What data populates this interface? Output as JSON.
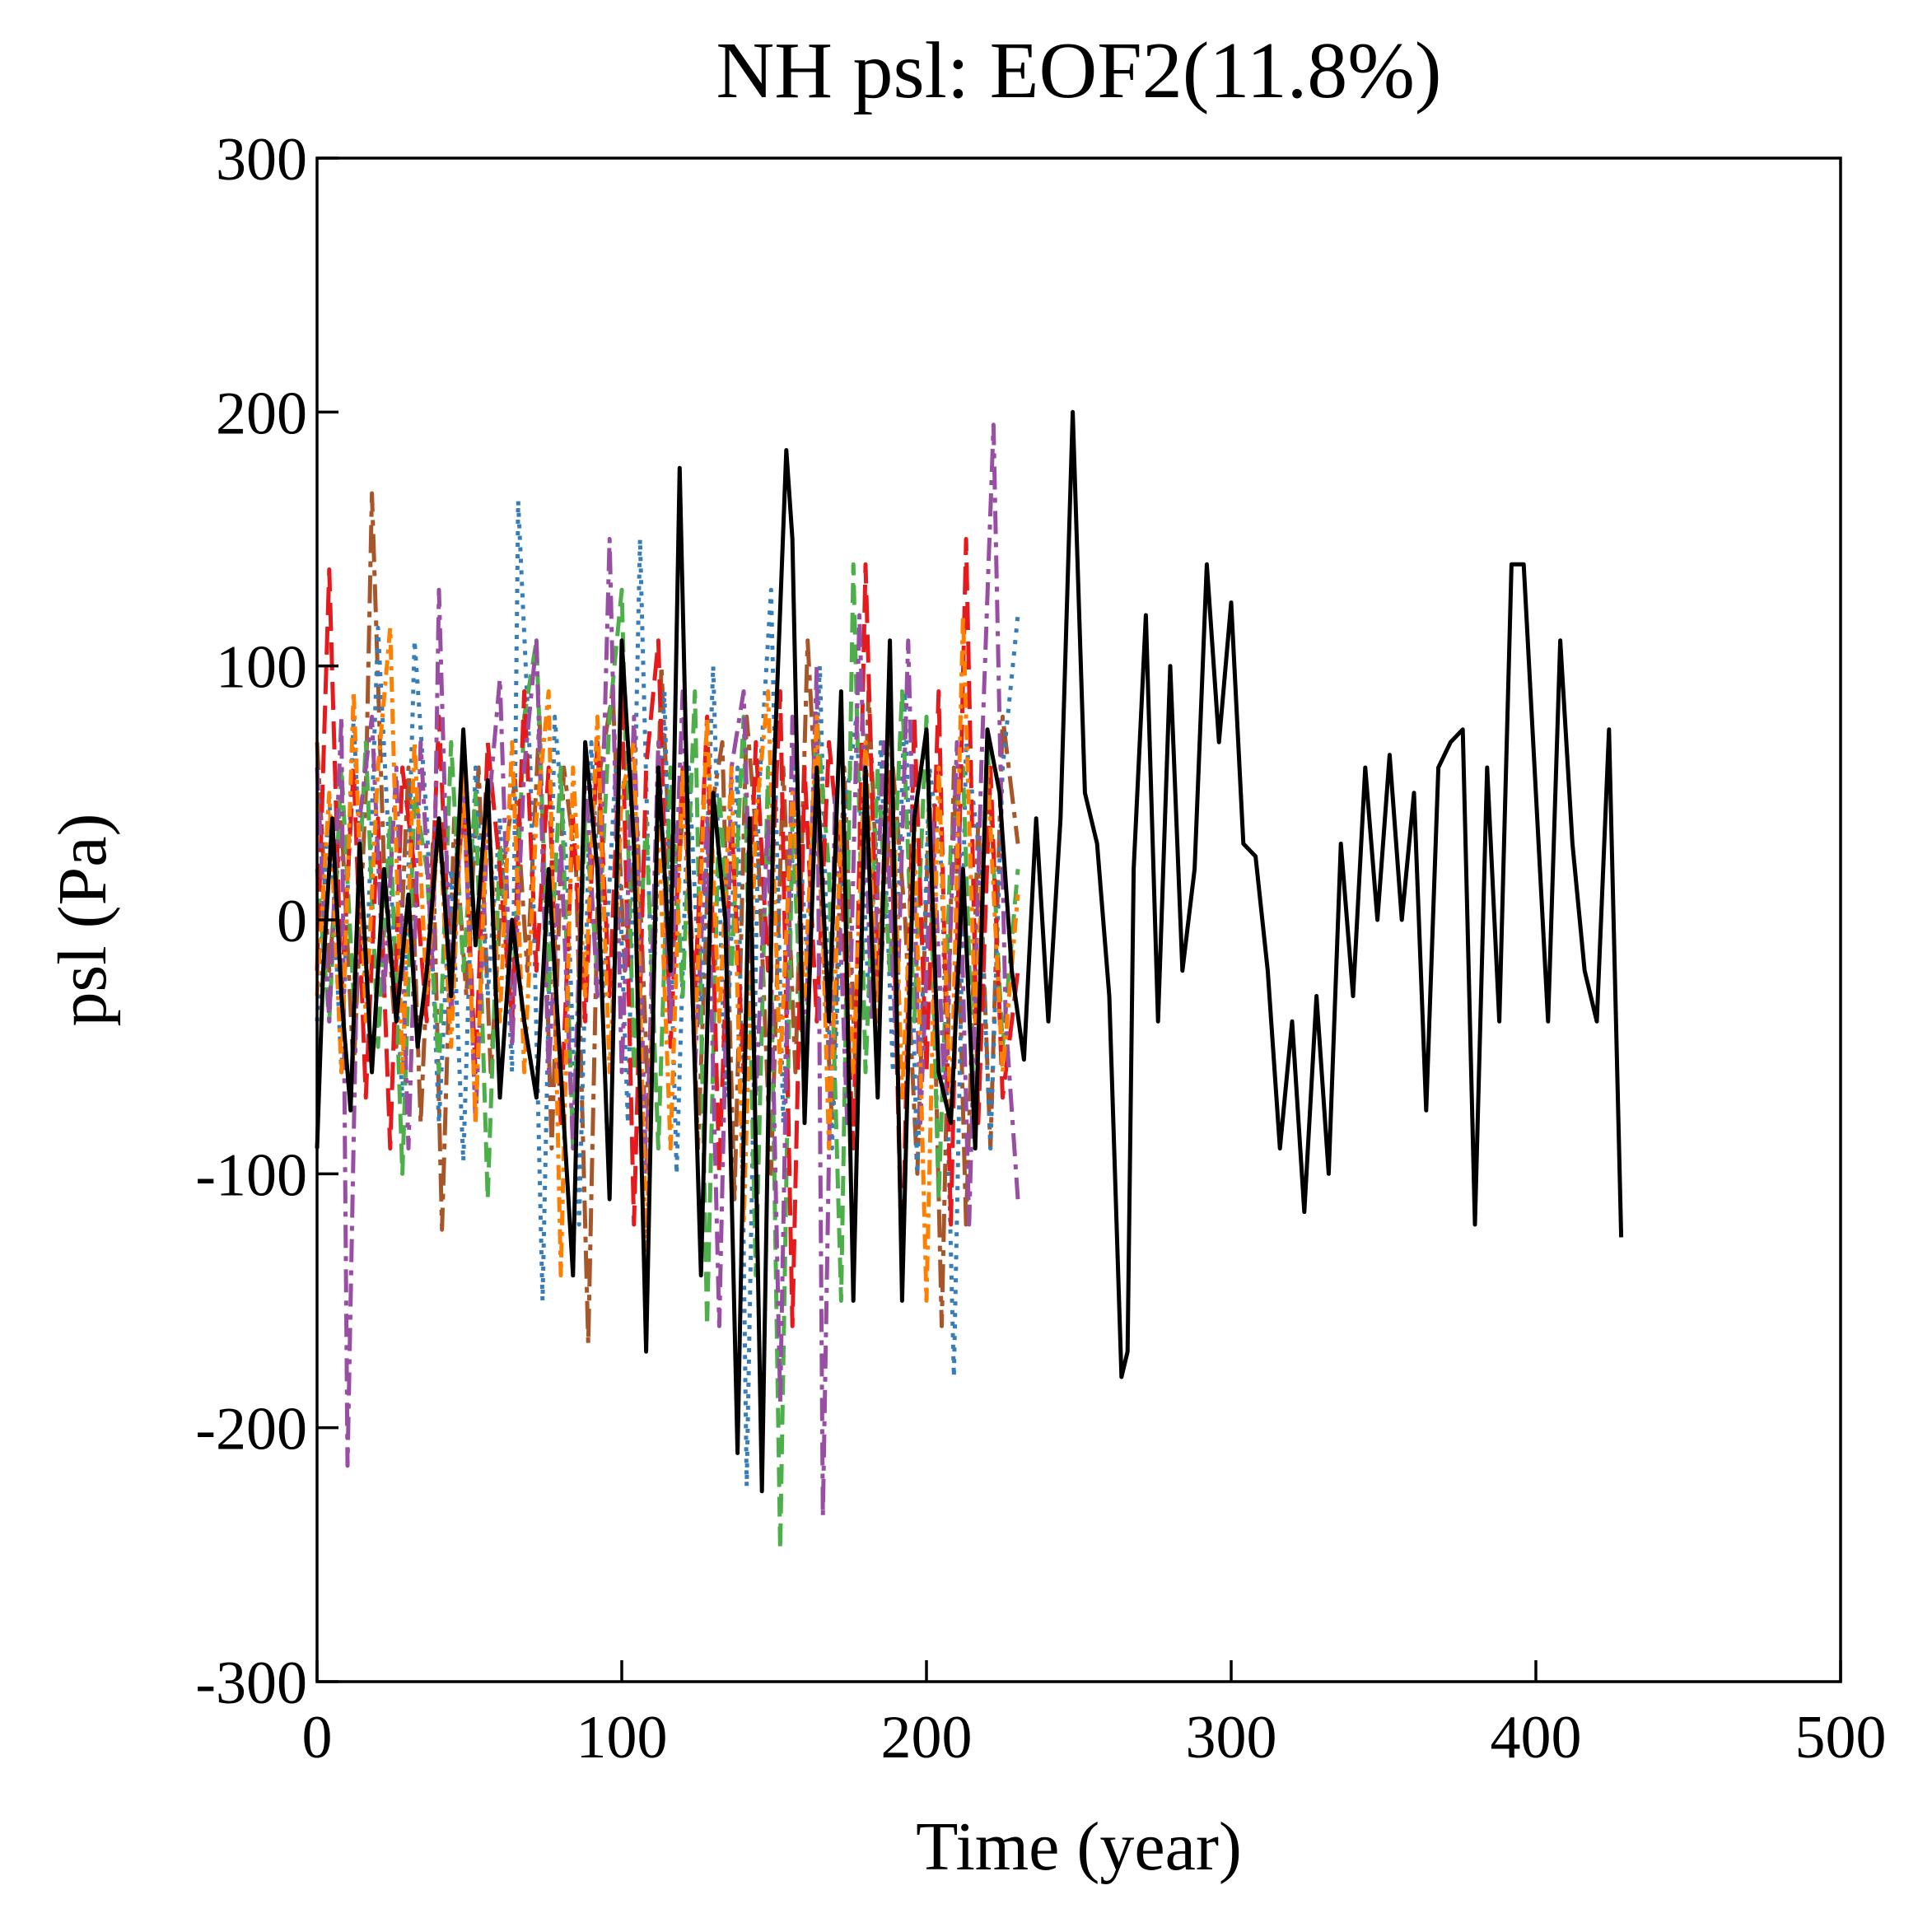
{
  "chart_data": {
    "type": "line",
    "title": "NH psl: EOF2(11.8%)",
    "xlabel": "Time (year)",
    "ylabel": "psl (Pa)",
    "xlim": [
      0,
      500
    ],
    "ylim": [
      -300,
      300
    ],
    "xticks": [
      0,
      100,
      200,
      300,
      400,
      500
    ],
    "yticks": [
      -300,
      -200,
      -100,
      0,
      100,
      200,
      300
    ],
    "xtick_labels": [
      "0",
      "100",
      "200",
      "300",
      "400",
      "500"
    ],
    "ytick_labels": [
      "-300",
      "-200",
      "-100",
      "0",
      "100",
      "200",
      "300"
    ],
    "grid": false,
    "legend": "none",
    "series": [
      {
        "name": "brown dash-dot",
        "color": "#a65628",
        "dash": "long-dash-dot",
        "x": [
          0,
          4,
          8,
          12,
          16,
          18,
          22,
          26,
          30,
          34,
          38,
          41,
          45,
          49,
          53,
          57,
          61,
          65,
          69,
          73,
          77,
          81,
          85,
          89,
          93,
          97,
          101,
          105,
          109,
          113,
          117,
          121,
          125,
          129,
          133,
          137,
          141,
          145,
          149,
          153,
          157,
          161,
          165,
          169,
          173,
          177,
          181,
          185,
          189,
          193,
          197,
          201,
          205,
          209,
          213,
          217,
          221,
          225,
          230
        ],
        "y": [
          70,
          -20,
          40,
          -60,
          50,
          168,
          20,
          -50,
          60,
          -80,
          30,
          -122,
          40,
          -30,
          60,
          -60,
          20,
          55,
          -20,
          80,
          -90,
          60,
          20,
          -167,
          60,
          90,
          -20,
          40,
          -80,
          100,
          -10,
          60,
          -90,
          40,
          70,
          -110,
          80,
          20,
          -100,
          60,
          -60,
          110,
          20,
          -80,
          60,
          -70,
          90,
          -20,
          60,
          0,
          -100,
          50,
          -160,
          60,
          -120,
          40,
          -90,
          80,
          30
        ]
      },
      {
        "name": "blue dotted",
        "color": "#377eb8",
        "dash": "dotted",
        "x": [
          0,
          4,
          8,
          12,
          16,
          20,
          24,
          28,
          32,
          36,
          40,
          44,
          48,
          52,
          56,
          60,
          64,
          66,
          70,
          74,
          78,
          82,
          86,
          90,
          94,
          98,
          102,
          106,
          110,
          114,
          118,
          122,
          126,
          130,
          134,
          138,
          141,
          145,
          149,
          153,
          157,
          161,
          165,
          169,
          173,
          177,
          181,
          185,
          189,
          193,
          197,
          201,
          205,
          209,
          213,
          217,
          221,
          225,
          230
        ],
        "y": [
          -40,
          50,
          -60,
          80,
          -30,
          115,
          20,
          -70,
          110,
          40,
          -80,
          20,
          -95,
          60,
          -30,
          40,
          -60,
          165,
          60,
          -150,
          80,
          20,
          -120,
          70,
          -30,
          60,
          -80,
          150,
          -40,
          90,
          -100,
          60,
          -40,
          100,
          -70,
          60,
          -223,
          50,
          130,
          -80,
          60,
          -20,
          100,
          -90,
          40,
          80,
          -30,
          70,
          -60,
          90,
          -100,
          60,
          20,
          -180,
          70,
          30,
          -90,
          60,
          120
        ]
      },
      {
        "name": "green dashed",
        "color": "#4daf4a",
        "dash": "dashed",
        "x": [
          0,
          4,
          8,
          12,
          16,
          20,
          24,
          28,
          32,
          36,
          40,
          44,
          48,
          52,
          56,
          60,
          64,
          68,
          72,
          76,
          80,
          84,
          88,
          92,
          96,
          100,
          104,
          108,
          112,
          116,
          120,
          124,
          128,
          132,
          136,
          140,
          144,
          148,
          152,
          156,
          160,
          164,
          168,
          172,
          176,
          180,
          184,
          188,
          192,
          196,
          200,
          204,
          208,
          212,
          216,
          220,
          225,
          230
        ],
        "y": [
          20,
          -40,
          60,
          -30,
          70,
          -50,
          40,
          -100,
          50,
          20,
          -60,
          70,
          -20,
          50,
          -110,
          30,
          -40,
          80,
          110,
          -30,
          60,
          -90,
          40,
          -20,
          80,
          130,
          -60,
          40,
          -90,
          60,
          -30,
          90,
          -160,
          50,
          -20,
          80,
          -140,
          60,
          -248,
          40,
          -70,
          80,
          20,
          -150,
          140,
          -60,
          60,
          -20,
          90,
          -40,
          80,
          -110,
          30,
          60,
          -90,
          70,
          -50,
          20
        ]
      },
      {
        "name": "red dashed",
        "color": "#e41a1c",
        "dash": "long-dash",
        "x": [
          0,
          4,
          8,
          12,
          16,
          20,
          24,
          28,
          32,
          36,
          40,
          44,
          48,
          52,
          56,
          60,
          64,
          68,
          72,
          76,
          80,
          84,
          88,
          92,
          96,
          100,
          104,
          108,
          112,
          116,
          120,
          124,
          128,
          132,
          136,
          140,
          144,
          148,
          152,
          156,
          160,
          164,
          168,
          172,
          176,
          180,
          184,
          188,
          192,
          196,
          200,
          204,
          208,
          213,
          217,
          221,
          225,
          230
        ],
        "y": [
          -20,
          138,
          -30,
          60,
          -70,
          40,
          -90,
          60,
          20,
          -40,
          80,
          -30,
          50,
          -60,
          70,
          20,
          -40,
          90,
          -20,
          60,
          -80,
          40,
          -40,
          70,
          -30,
          90,
          -120,
          60,
          110,
          -50,
          60,
          -30,
          80,
          -100,
          40,
          -60,
          70,
          -20,
          90,
          -160,
          60,
          -40,
          70,
          20,
          -90,
          140,
          -30,
          60,
          -140,
          80,
          -60,
          90,
          -120,
          150,
          -80,
          60,
          -70,
          -20
        ]
      },
      {
        "name": "purple dash-dot",
        "color": "#984ea3",
        "dash": "dash-dot",
        "x": [
          0,
          4,
          8,
          10,
          14,
          18,
          22,
          26,
          30,
          34,
          38,
          40,
          44,
          48,
          52,
          56,
          60,
          64,
          68,
          72,
          76,
          80,
          84,
          88,
          92,
          96,
          100,
          104,
          108,
          112,
          116,
          120,
          124,
          128,
          132,
          136,
          140,
          144,
          148,
          152,
          156,
          160,
          164,
          166,
          170,
          174,
          178,
          182,
          186,
          190,
          194,
          198,
          202,
          206,
          210,
          214,
          218,
          222,
          226,
          230
        ],
        "y": [
          60,
          -40,
          80,
          -215,
          40,
          80,
          -30,
          60,
          -90,
          70,
          -20,
          130,
          -40,
          60,
          -80,
          40,
          95,
          -50,
          60,
          110,
          -60,
          30,
          -90,
          60,
          -30,
          150,
          -60,
          80,
          -100,
          70,
          -40,
          90,
          -60,
          40,
          -160,
          60,
          90,
          -70,
          40,
          -190,
          80,
          -60,
          100,
          -235,
          50,
          -80,
          120,
          -40,
          70,
          -50,
          110,
          -80,
          40,
          -70,
          70,
          -120,
          60,
          195,
          -40,
          -110
        ]
      },
      {
        "name": "orange dash-dot",
        "color": "#ff7f00",
        "dash": "short-dash-dot",
        "x": [
          0,
          4,
          8,
          12,
          16,
          20,
          24,
          28,
          32,
          36,
          40,
          44,
          48,
          52,
          56,
          60,
          64,
          68,
          72,
          76,
          80,
          84,
          88,
          92,
          96,
          100,
          104,
          108,
          112,
          116,
          120,
          124,
          128,
          132,
          136,
          140,
          144,
          148,
          152,
          156,
          160,
          164,
          168,
          172,
          176,
          180,
          184,
          188,
          192,
          196,
          200,
          204,
          208,
          212,
          216,
          220,
          225,
          230
        ],
        "y": [
          -30,
          50,
          -60,
          90,
          -40,
          60,
          115,
          -60,
          70,
          -30,
          40,
          -50,
          60,
          -80,
          50,
          -40,
          70,
          -60,
          40,
          90,
          -140,
          60,
          -30,
          80,
          -60,
          50,
          70,
          -130,
          40,
          -90,
          60,
          -50,
          80,
          -40,
          60,
          -120,
          40,
          90,
          -60,
          50,
          -30,
          80,
          -90,
          40,
          -60,
          70,
          -40,
          90,
          -70,
          40,
          -150,
          60,
          -80,
          120,
          -40,
          60,
          -60,
          10
        ]
      },
      {
        "name": "black solid",
        "color": "#000000",
        "dash": "solid",
        "x": [
          0,
          2,
          5,
          8,
          11,
          14,
          18,
          22,
          26,
          30,
          33,
          36,
          40,
          44,
          48,
          52,
          56,
          60,
          64,
          68,
          72,
          76,
          80,
          84,
          88,
          92,
          96,
          100,
          104,
          108,
          112,
          116,
          119,
          122,
          126,
          130,
          134,
          138,
          142,
          146,
          150,
          154,
          156,
          160,
          164,
          168,
          172,
          176,
          180,
          184,
          188,
          192,
          196,
          200,
          204,
          208,
          212,
          216,
          220,
          224,
          228,
          232,
          236,
          240,
          244,
          248,
          252,
          256,
          260,
          264,
          266,
          268,
          272,
          276,
          280,
          284,
          288,
          292,
          296,
          300,
          304,
          308,
          312,
          316,
          320,
          324,
          328,
          332,
          336,
          340,
          344,
          348,
          352,
          356,
          360,
          364,
          368,
          372,
          376,
          380,
          384,
          388,
          392,
          396,
          400,
          404,
          408,
          412,
          416,
          420,
          424,
          428
        ],
        "y": [
          -90,
          -20,
          40,
          -30,
          -75,
          30,
          -60,
          20,
          -40,
          10,
          -50,
          -20,
          40,
          -30,
          75,
          -10,
          55,
          -70,
          0,
          -40,
          -70,
          20,
          -60,
          -140,
          70,
          20,
          -110,
          110,
          30,
          -170,
          60,
          -20,
          178,
          20,
          -140,
          50,
          0,
          -210,
          40,
          -225,
          60,
          185,
          150,
          -80,
          60,
          -40,
          90,
          -150,
          60,
          -70,
          110,
          -150,
          40,
          75,
          -60,
          -80,
          20,
          -90,
          75,
          50,
          -20,
          -55,
          40,
          -40,
          40,
          200,
          50,
          30,
          -30,
          -180,
          -170,
          20,
          120,
          -40,
          100,
          -20,
          20,
          140,
          70,
          125,
          30,
          25,
          -20,
          -90,
          -40,
          -115,
          -30,
          -100,
          30,
          -30,
          60,
          0,
          65,
          0,
          50,
          -75,
          60,
          70,
          75,
          -120,
          60,
          -40,
          140,
          140,
          50,
          -40,
          110,
          30,
          -20,
          -40,
          75,
          -125
        ]
      }
    ]
  }
}
